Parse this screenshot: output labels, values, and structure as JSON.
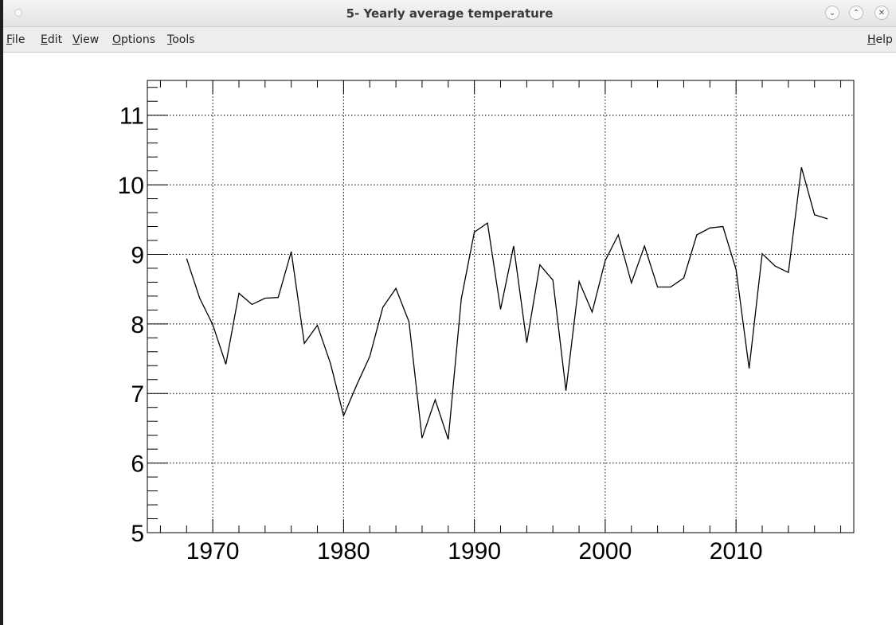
{
  "window": {
    "title": "5- Yearly average temperature",
    "buttons": [
      {
        "name": "minimize",
        "glyph": "⌄"
      },
      {
        "name": "maximize",
        "glyph": "⌃"
      },
      {
        "name": "close",
        "glyph": "✕"
      }
    ]
  },
  "menu": {
    "items": [
      {
        "mnemonic": "F",
        "rest": "ile"
      },
      {
        "mnemonic": "E",
        "rest": "dit"
      },
      {
        "mnemonic": "V",
        "rest": "iew"
      },
      {
        "mnemonic": "O",
        "rest": "ptions"
      },
      {
        "mnemonic": "T",
        "rest": "ools"
      }
    ],
    "help": {
      "mnemonic": "H",
      "rest": "elp"
    }
  },
  "chart_data": {
    "type": "line",
    "title": "",
    "xlabel": "",
    "ylabel": "",
    "xlim": [
      1965,
      2019
    ],
    "ylim": [
      5,
      11.5
    ],
    "grid": true,
    "line_color": "#000000",
    "x_ticks": [
      1970,
      1980,
      1990,
      2000,
      2010
    ],
    "y_ticks": [
      5,
      6,
      7,
      8,
      9,
      10,
      11
    ],
    "x": [
      1968,
      1969,
      1970,
      1971,
      1972,
      1973,
      1974,
      1975,
      1976,
      1977,
      1978,
      1979,
      1980,
      1981,
      1982,
      1983,
      1984,
      1985,
      1986,
      1987,
      1988,
      1989,
      1990,
      1991,
      1992,
      1993,
      1994,
      1995,
      1996,
      1997,
      1998,
      1999,
      2000,
      2001,
      2002,
      2003,
      2004,
      2005,
      2006,
      2007,
      2008,
      2009,
      2010,
      2011,
      2012,
      2013,
      2014,
      2015,
      2016,
      2017
    ],
    "y": [
      8.94,
      8.37,
      7.99,
      7.42,
      8.44,
      8.28,
      8.37,
      8.38,
      9.04,
      7.72,
      7.98,
      7.43,
      6.68,
      7.12,
      7.53,
      8.24,
      8.51,
      8.03,
      6.36,
      6.91,
      6.34,
      8.36,
      9.32,
      9.45,
      8.21,
      9.12,
      7.73,
      8.85,
      8.63,
      7.04,
      8.61,
      8.17,
      8.91,
      9.28,
      8.59,
      9.12,
      8.53,
      8.53,
      8.66,
      9.28,
      9.38,
      9.4,
      8.78,
      7.36,
      9.01,
      8.83,
      8.74,
      10.25,
      9.57,
      9.51
    ]
  }
}
